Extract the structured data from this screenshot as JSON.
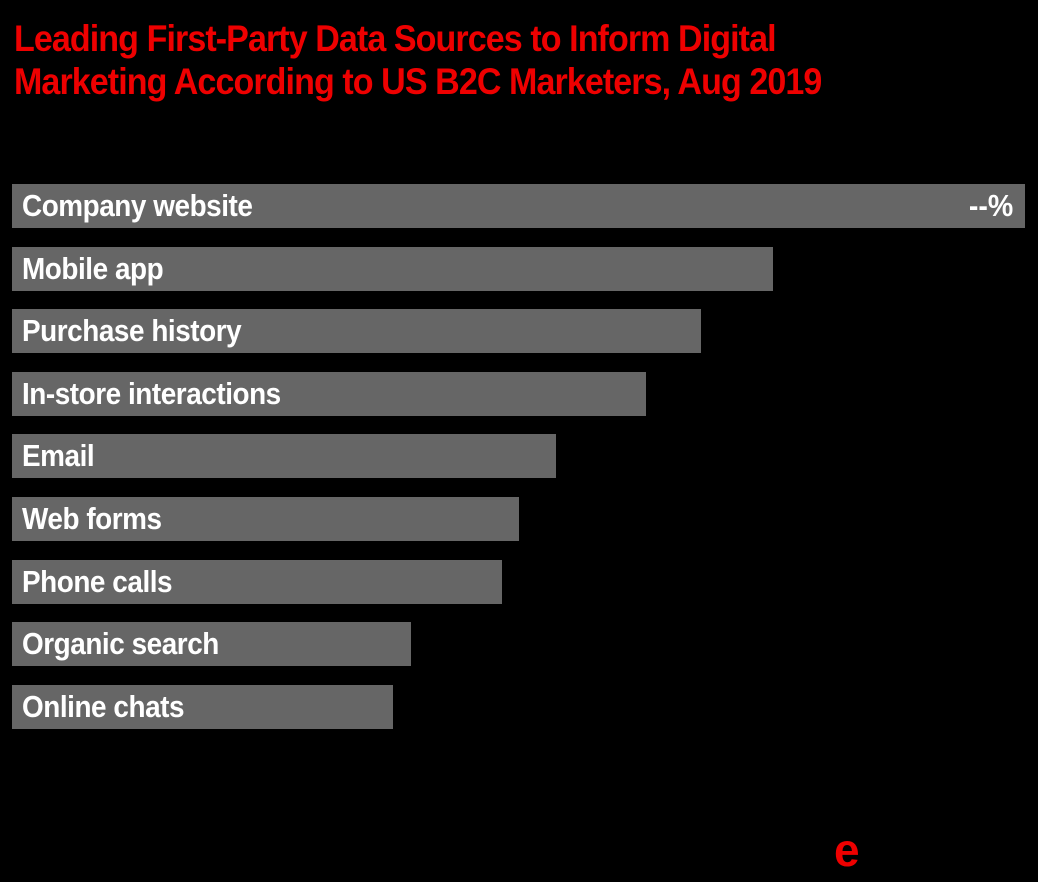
{
  "page": {
    "background_color": "#000000"
  },
  "title": {
    "lines": [
      "Leading First-Party Data Sources to Inform Digital",
      "Marketing According to US B2C Marketers, Aug 2019"
    ],
    "color": "#ee0000"
  },
  "branding": {
    "logo_e": "e",
    "color": "#ee0000"
  },
  "chart_data": {
    "type": "bar",
    "orientation": "horizontal",
    "title": "Leading First-Party Data Sources to Inform Digital Marketing According to US B2C Marketers, Aug 2019",
    "categories": [
      "Company website",
      "Mobile app",
      "Purchase history",
      "In-store interactions",
      "Email",
      "Web forms",
      "Phone calls",
      "Organic search",
      "Online chats"
    ],
    "values_pct_of_max_width": [
      100,
      75.1,
      68.0,
      62.6,
      53.7,
      50.0,
      48.4,
      39.4,
      37.6
    ],
    "value_labels": [
      "--%",
      "",
      "",
      "",
      "",
      "",
      "",
      "",
      ""
    ],
    "bar_color": "#666666",
    "bar_label_color": "#ffffff",
    "background_color": "#000000",
    "xlabel": "",
    "ylabel": "",
    "grid": false,
    "legend": false,
    "axes_shown": false
  }
}
